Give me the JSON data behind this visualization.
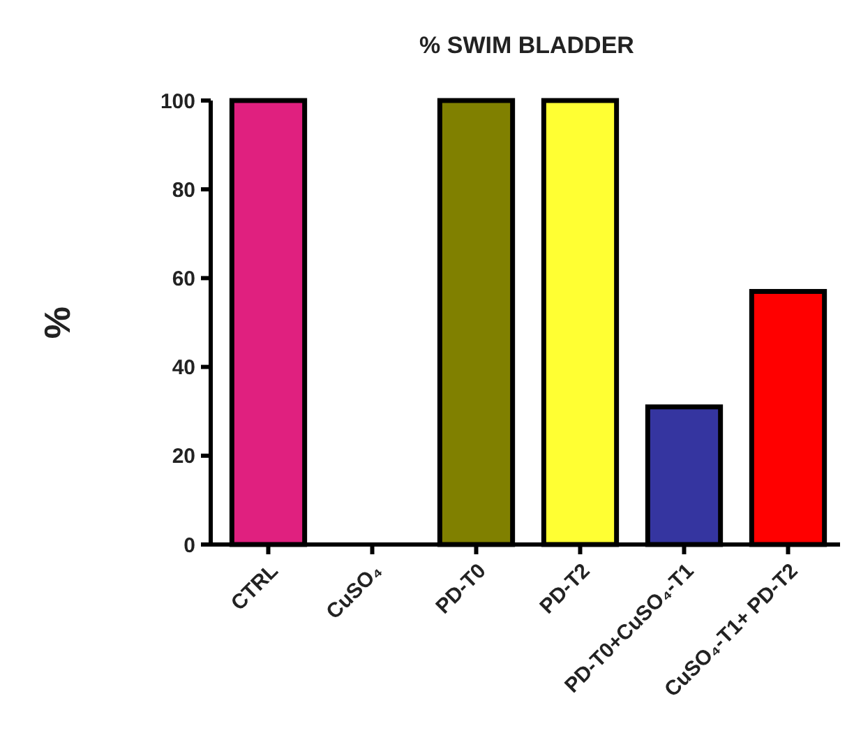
{
  "chart_data": {
    "type": "bar",
    "title": "% SWIM BLADDER",
    "ylabel": "%",
    "categories": [
      "CTRL",
      "CuSO₄",
      "PD-T0",
      "PD-T2",
      "PD-T0+CuSO₄-T1",
      "CuSO₄-T1+ PD-T2"
    ],
    "values": [
      100,
      0,
      100,
      100,
      31,
      57
    ],
    "colors": [
      "#e0207f",
      "#ffffff",
      "#808000",
      "#ffff33",
      "#3535a0",
      "#ff0000"
    ],
    "ylim": [
      0,
      100
    ],
    "yticks": [
      0,
      20,
      40,
      60,
      80,
      100
    ],
    "grid": false
  }
}
